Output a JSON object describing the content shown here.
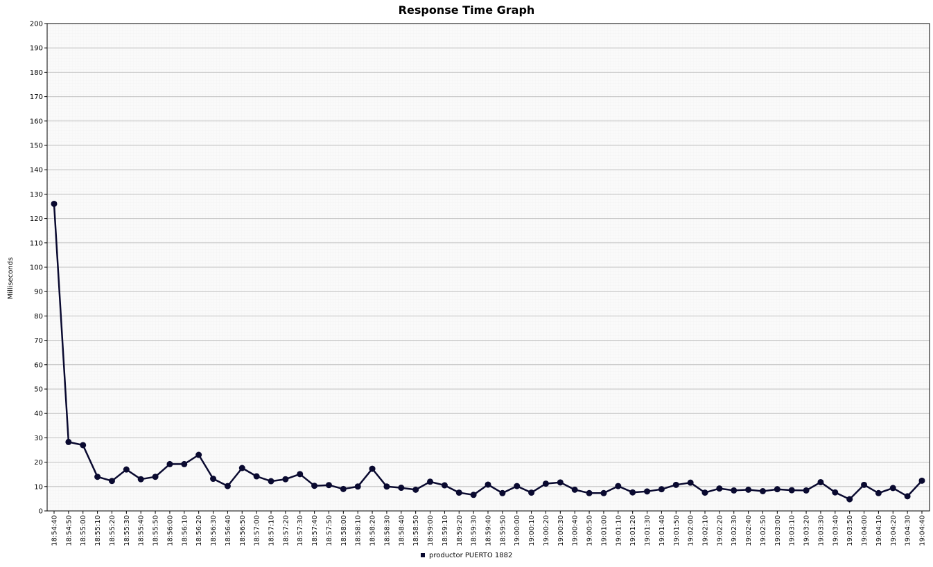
{
  "chart_data": {
    "type": "line",
    "title": "Response Time Graph",
    "xlabel": "",
    "ylabel": "Milliseconds",
    "ylim": [
      0,
      200
    ],
    "yticks": [
      0,
      10,
      20,
      30,
      40,
      50,
      60,
      70,
      80,
      90,
      100,
      110,
      120,
      130,
      140,
      150,
      160,
      170,
      180,
      190,
      200
    ],
    "grid": true,
    "legend_position": "bottom-center",
    "categories": [
      "18:54:40",
      "18:54:50",
      "18:55:00",
      "18:55:10",
      "18:55:20",
      "18:55:30",
      "18:55:40",
      "18:55:50",
      "18:56:00",
      "18:56:10",
      "18:56:20",
      "18:56:30",
      "18:56:40",
      "18:56:50",
      "18:57:00",
      "18:57:10",
      "18:57:20",
      "18:57:30",
      "18:57:40",
      "18:57:50",
      "18:58:00",
      "18:58:10",
      "18:58:20",
      "18:58:30",
      "18:58:40",
      "18:58:50",
      "18:59:00",
      "18:59:10",
      "18:59:20",
      "18:59:30",
      "18:59:40",
      "18:59:50",
      "19:00:00",
      "19:00:10",
      "19:00:20",
      "19:00:30",
      "19:00:40",
      "19:00:50",
      "19:01:00",
      "19:01:10",
      "19:01:20",
      "19:01:30",
      "19:01:40",
      "19:01:50",
      "19:02:00",
      "19:02:10",
      "19:02:20",
      "19:02:30",
      "19:02:40",
      "19:02:50",
      "19:03:00",
      "19:03:10",
      "19:03:20",
      "19:03:30",
      "19:03:40",
      "19:03:50",
      "19:04:00",
      "19:04:10",
      "19:04:20",
      "19:04:30",
      "19:04:40"
    ],
    "series": [
      {
        "name": "productor PUERTO 1882",
        "color": "#0a0a30",
        "values": [
          126,
          28.3,
          27,
          14,
          12.3,
          17,
          13,
          14,
          19.2,
          19.2,
          23,
          13.2,
          10.2,
          17.6,
          14.2,
          12.2,
          13,
          15.1,
          10.3,
          10.6,
          9,
          10,
          17.3,
          10,
          9.5,
          8.7,
          12,
          10.5,
          7.5,
          6.6,
          10.8,
          7.3,
          10.2,
          7.5,
          11.2,
          11.7,
          8.7,
          7.3,
          7.3,
          10.2,
          7.6,
          8,
          8.9,
          10.7,
          11.6,
          7.5,
          9.2,
          8.4,
          8.7,
          8.1,
          8.9,
          8.5,
          8.4,
          11.8,
          7.6,
          4.8,
          10.7,
          7.3,
          9.4,
          6,
          12.4
        ]
      }
    ]
  }
}
